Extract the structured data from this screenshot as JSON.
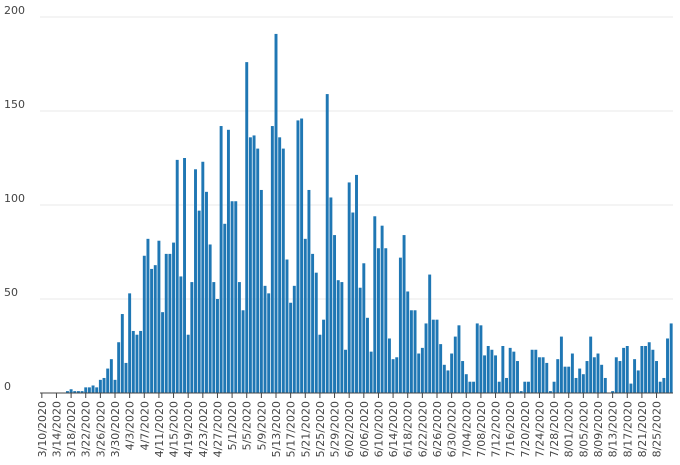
{
  "chart_data": {
    "type": "bar",
    "title": "",
    "xlabel": "",
    "ylabel": "",
    "ylim": [
      0,
      200
    ],
    "yticks": [
      0,
      50,
      100,
      150,
      200
    ],
    "grid": true,
    "bar_color": "#1f77b4",
    "x_start": "3/10/2020",
    "tick_labels": [
      "3/10/2020",
      "3/14/2020",
      "3/18/2020",
      "3/22/2020",
      "3/26/2020",
      "3/30/2020",
      "4/3/2020",
      "4/7/2020",
      "4/11/2020",
      "4/15/2020",
      "4/19/2020",
      "4/23/2020",
      "4/27/2020",
      "5/1/2020",
      "5/5/2020",
      "5/9/2020",
      "5/13/2020",
      "5/17/2020",
      "5/21/2020",
      "5/25/2020",
      "5/29/2020",
      "6/02/2020",
      "6/06/2020",
      "6/10/2020",
      "6/14/2020",
      "6/18/2020",
      "6/22/2020",
      "6/26/2020",
      "6/30/2020",
      "7/04/2020",
      "7/08/2020",
      "7/12/2020",
      "7/16/2020",
      "7/20/2020",
      "7/24/2020",
      "7/28/2020",
      "8/01/2020",
      "8/05/2020",
      "8/09/2020",
      "8/13/2020",
      "8/17/2020",
      "8/21/2020",
      "8/25/2020"
    ],
    "values": [
      0,
      0,
      0,
      0,
      0,
      0,
      0,
      1,
      2,
      1,
      1,
      1,
      3,
      3,
      4,
      3,
      7,
      8,
      13,
      18,
      7,
      27,
      42,
      16,
      53,
      33,
      31,
      33,
      73,
      82,
      66,
      68,
      81,
      43,
      74,
      74,
      80,
      124,
      62,
      125,
      31,
      59,
      119,
      97,
      123,
      107,
      79,
      59,
      50,
      142,
      90,
      140,
      102,
      102,
      59,
      44,
      176,
      136,
      137,
      130,
      108,
      57,
      53,
      142,
      191,
      136,
      130,
      71,
      48,
      57,
      145,
      146,
      82,
      108,
      74,
      64,
      31,
      39,
      159,
      104,
      84,
      60,
      59,
      23,
      112,
      96,
      116,
      56,
      69,
      40,
      22,
      94,
      77,
      89,
      77,
      29,
      18,
      19,
      72,
      84,
      54,
      44,
      44,
      21,
      24,
      37,
      63,
      39,
      39,
      26,
      15,
      12,
      21,
      30,
      36,
      17,
      10,
      6,
      6,
      37,
      36,
      20,
      25,
      23,
      20,
      6,
      25,
      8,
      24,
      22,
      17,
      1,
      6,
      6,
      23,
      23,
      19,
      19,
      16,
      1,
      6,
      18,
      30,
      14,
      14,
      21,
      8,
      13,
      10,
      17,
      30,
      19,
      21,
      15,
      8,
      0,
      1,
      19,
      17,
      24,
      25,
      5,
      18,
      12,
      25,
      25,
      27,
      23,
      17,
      6,
      8,
      29,
      37
    ]
  }
}
